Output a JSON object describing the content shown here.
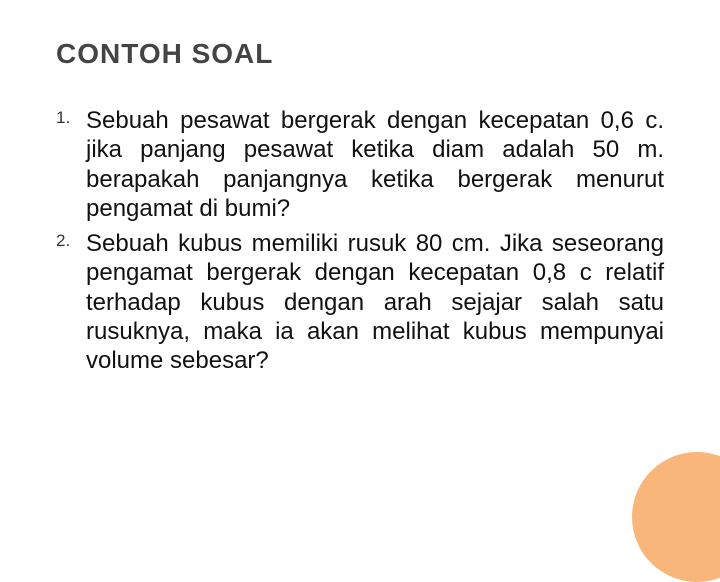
{
  "slide": {
    "title": "CONTOH SOAL",
    "title_color": "#444444",
    "title_fontsize": 28,
    "background_color": "#ffffff",
    "text_color": "#111111",
    "body_fontsize": 24,
    "accent_circle_color": "#f9b67a",
    "items": [
      {
        "number": "1.",
        "text": "Sebuah pesawat bergerak dengan kecepatan 0,6 c. jika panjang pesawat ketika diam adalah 50 m. berapakah panjangnya ketika bergerak menurut pengamat di bumi?"
      },
      {
        "number": "2.",
        "text": "Sebuah kubus memiliki rusuk 80 cm. Jika seseorang pengamat bergerak dengan kecepatan 0,8 c relatif terhadap kubus dengan arah sejajar salah satu rusuknya, maka ia akan melihat kubus mempunyai volume sebesar?"
      }
    ]
  }
}
